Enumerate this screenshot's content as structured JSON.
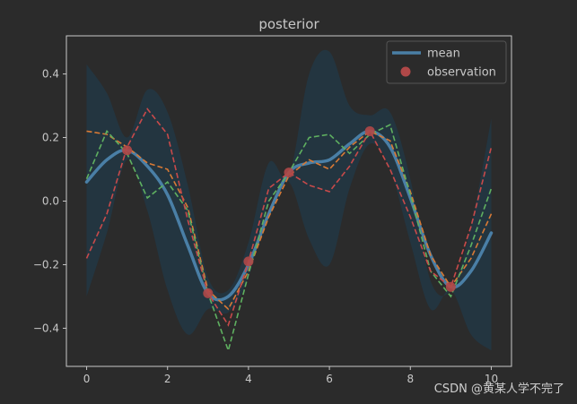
{
  "chart_data": {
    "type": "line",
    "title": "posterior",
    "xlabel": "",
    "ylabel": "",
    "xlim": [
      -0.5,
      10.5
    ],
    "ylim": [
      -0.52,
      0.52
    ],
    "xticks": [
      0,
      2,
      4,
      6,
      8,
      10
    ],
    "yticks": [
      -0.4,
      -0.2,
      0.0,
      0.2,
      0.4
    ],
    "xtick_labels": [
      "0",
      "2",
      "4",
      "6",
      "8",
      "10"
    ],
    "ytick_labels": [
      "−0.4",
      "−0.2",
      "0.0",
      "0.2",
      "0.4"
    ],
    "grid": false,
    "legend_position": "top-right",
    "colors": {
      "background": "#2b2b2b",
      "band": "#233540",
      "mean": "#4a7fa6",
      "observation": "#b04848",
      "sample_1": "#d97a35",
      "sample_2": "#5fb060",
      "sample_3": "#c84a4a",
      "axes": "#c8c8c8",
      "text": "#c8c8c8"
    },
    "legend": [
      {
        "label": "mean",
        "kind": "line"
      },
      {
        "label": "observation",
        "kind": "marker"
      }
    ],
    "x": [
      0,
      0.5,
      1,
      1.5,
      2,
      2.5,
      3,
      3.5,
      4,
      4.5,
      5,
      5.5,
      6,
      6.5,
      7,
      7.5,
      8,
      8.5,
      9,
      9.5,
      10
    ],
    "upper": [
      0.43,
      0.34,
      0.2,
      0.35,
      0.28,
      0.05,
      -0.24,
      -0.28,
      -0.13,
      0.12,
      0.08,
      0.4,
      0.47,
      0.3,
      0.27,
      0.28,
      0.07,
      -0.25,
      -0.28,
      -0.08,
      0.26
    ],
    "lower": [
      -0.3,
      -0.1,
      0.13,
      -0.03,
      -0.28,
      -0.42,
      -0.34,
      -0.35,
      -0.24,
      -0.01,
      0.06,
      -0.12,
      -0.2,
      0.04,
      0.18,
      0.1,
      -0.13,
      -0.34,
      -0.28,
      -0.42,
      -0.47
    ],
    "mean": [
      0.06,
      0.13,
      0.16,
      0.11,
      0.02,
      -0.14,
      -0.29,
      -0.3,
      -0.2,
      -0.04,
      0.09,
      0.12,
      0.13,
      0.18,
      0.22,
      0.17,
      0.01,
      -0.17,
      -0.27,
      -0.22,
      -0.1
    ],
    "samples": [
      {
        "values": [
          0.22,
          0.21,
          0.17,
          0.12,
          0.1,
          -0.02,
          -0.28,
          -0.34,
          -0.22,
          -0.05,
          0.08,
          0.13,
          0.1,
          0.17,
          0.22,
          0.19,
          0.03,
          -0.17,
          -0.27,
          -0.18,
          -0.04
        ]
      },
      {
        "values": [
          0.07,
          0.22,
          0.15,
          0.01,
          0.06,
          -0.03,
          -0.29,
          -0.47,
          -0.23,
          0.0,
          0.09,
          0.2,
          0.21,
          0.15,
          0.21,
          0.24,
          0.02,
          -0.22,
          -0.3,
          -0.14,
          0.04
        ]
      },
      {
        "values": [
          -0.18,
          -0.04,
          0.17,
          0.29,
          0.21,
          -0.06,
          -0.29,
          -0.39,
          -0.19,
          0.04,
          0.09,
          0.05,
          0.03,
          0.11,
          0.22,
          0.1,
          -0.05,
          -0.22,
          -0.27,
          -0.08,
          0.17
        ]
      }
    ],
    "observations": {
      "x": [
        1,
        3,
        4,
        5,
        7,
        9
      ],
      "y": [
        0.16,
        -0.29,
        -0.19,
        0.09,
        0.22,
        -0.27
      ]
    }
  },
  "watermark": "CSDN @黄某人学不完了"
}
